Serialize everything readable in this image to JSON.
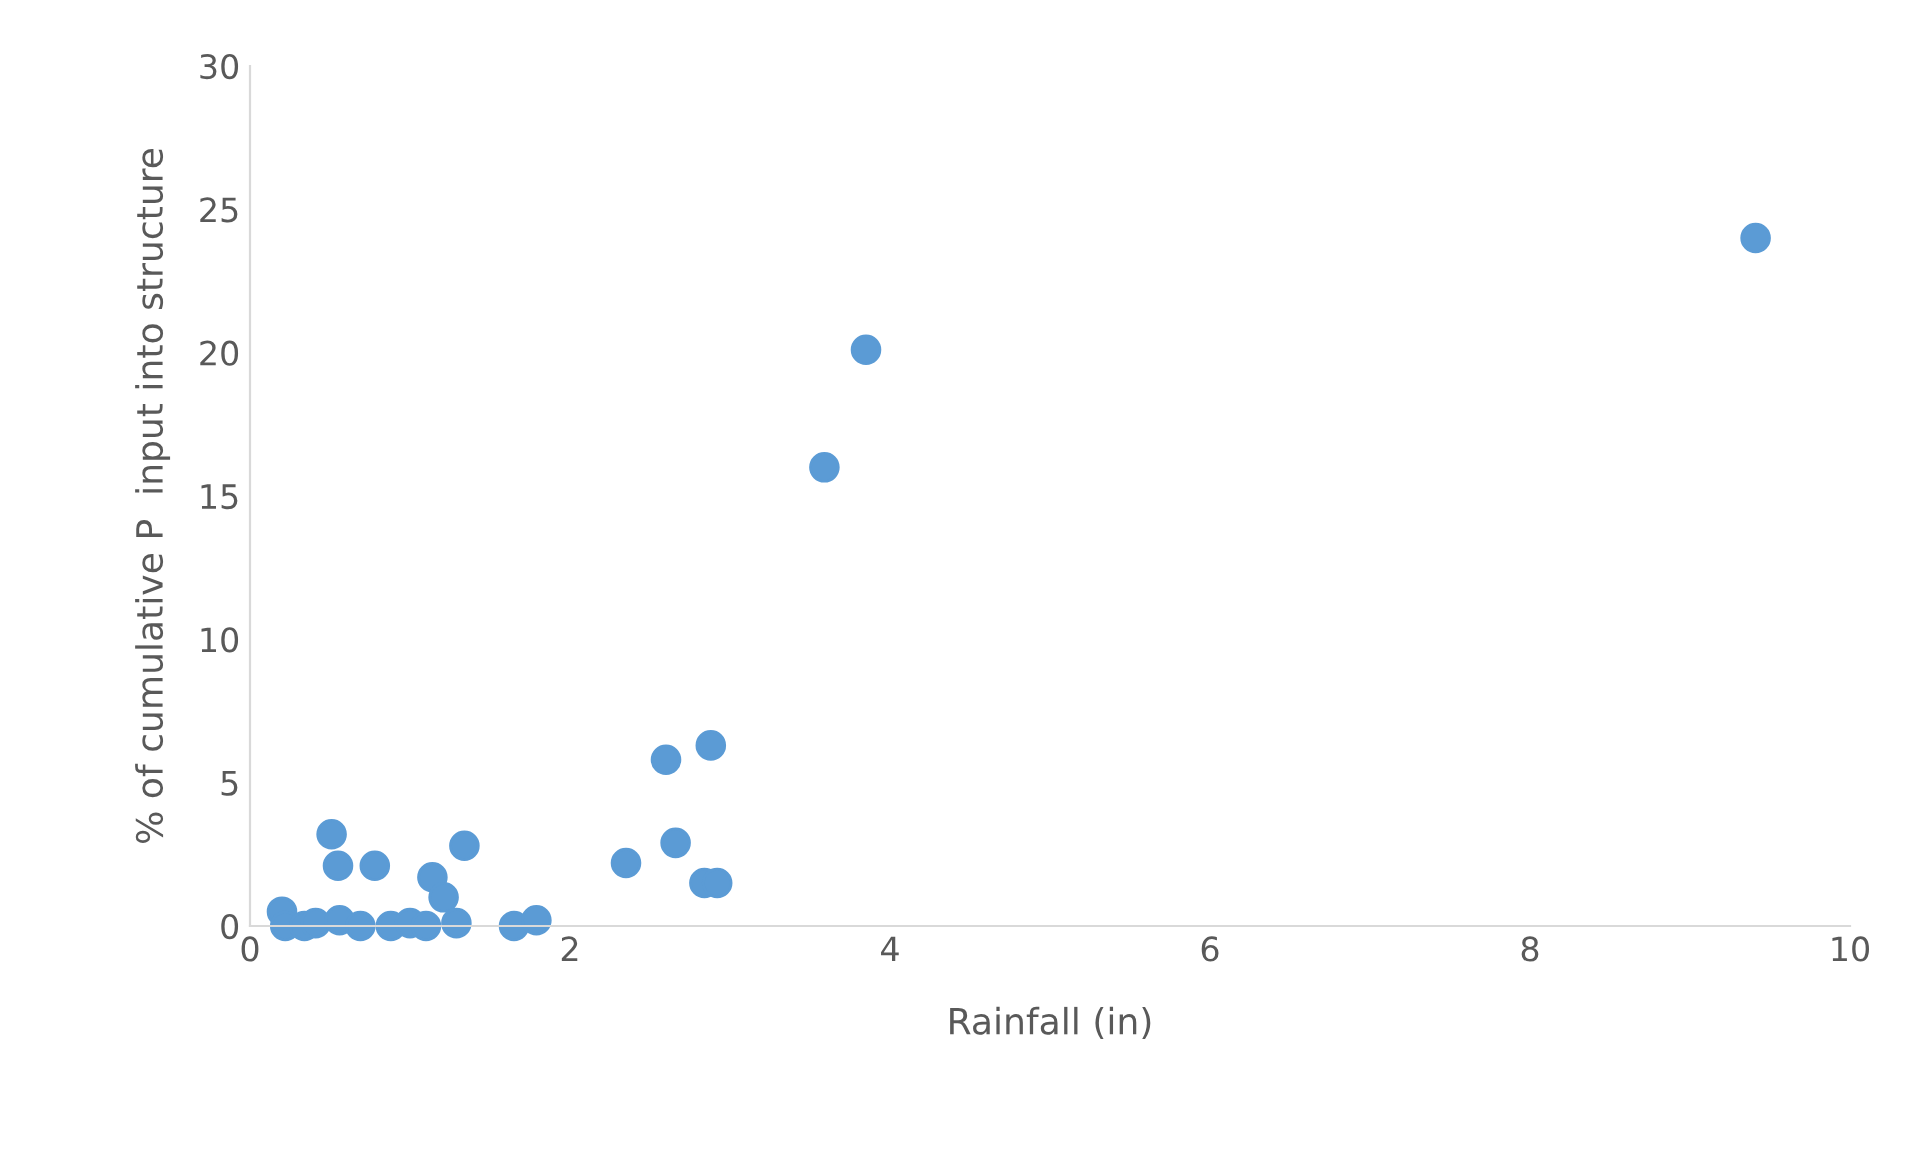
{
  "chart_data": {
    "type": "scatter",
    "xlabel": "Rainfall (in)",
    "ylabel": "% of cumulative P  input into structure",
    "xlim": [
      0,
      10
    ],
    "xticks": [
      0,
      2,
      4,
      6,
      8,
      10
    ],
    "ylim": [
      0,
      30
    ],
    "yticks": [
      0,
      5,
      10,
      15,
      20,
      25,
      30
    ],
    "grid": false,
    "marker": "circle",
    "series": [
      {
        "color": "#5b9bd5",
        "x": [
          0.2,
          0.22,
          0.34,
          0.41,
          0.51,
          0.55,
          0.56,
          0.69,
          0.78,
          0.88,
          1.0,
          1.1,
          1.14,
          1.21,
          1.29,
          1.34,
          1.65,
          1.79,
          2.35,
          2.6,
          2.66,
          2.88,
          2.84,
          2.92,
          3.59,
          3.85,
          9.41
        ],
        "values": [
          0.5,
          0,
          0,
          0.1,
          3.2,
          2.1,
          0.2,
          0,
          2.1,
          0,
          0.1,
          0,
          1.7,
          1.0,
          0.1,
          2.8,
          0,
          0.2,
          2.2,
          5.8,
          2.9,
          6.3,
          1.5,
          1.5,
          16.0,
          20.1,
          24.0
        ]
      }
    ]
  }
}
